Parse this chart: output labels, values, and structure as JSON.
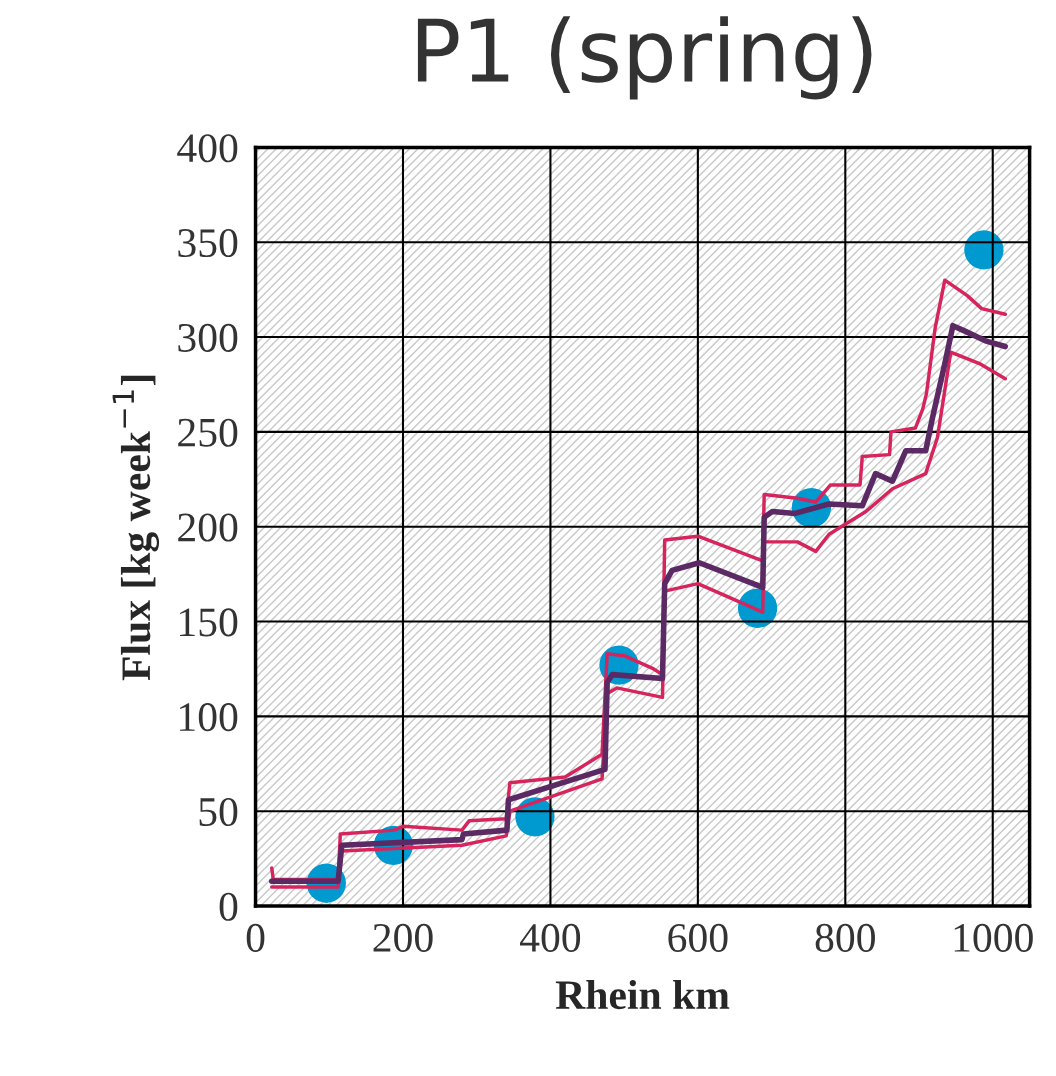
{
  "chart_data": {
    "type": "line",
    "title": "P1 (spring)",
    "xlabel": "Rhein km",
    "ylabel": "Flux [kg week$^{−1}$]",
    "xlim": [
      0,
      1050
    ],
    "xticks": [
      0,
      200,
      400,
      600,
      800,
      1000
    ],
    "ylim": [
      0,
      400
    ],
    "yticks": [
      0,
      50,
      100,
      150,
      200,
      250,
      300,
      350,
      400
    ],
    "grid": true,
    "legend": false,
    "series": [
      {
        "color": "#d6245c",
        "x": [
          22,
          24,
          28,
          112,
          115,
          188,
          200,
          280,
          290,
          340,
          345,
          420,
          470,
          477,
          500,
          540,
          552,
          555,
          600,
          688,
          690,
          735,
          760,
          780,
          820,
          823,
          860,
          862,
          895,
          905,
          910,
          922,
          935,
          965,
          985,
          1017
        ],
        "values": [
          20,
          14,
          14,
          14,
          38,
          40,
          42,
          40,
          45,
          46,
          65,
          68,
          80,
          133,
          132,
          125,
          122,
          193,
          195,
          182,
          217,
          215,
          213,
          222,
          222,
          237,
          238,
          250,
          252,
          262,
          270,
          305,
          330,
          322,
          315,
          312
        ]
      },
      {
        "color": "#d6245c",
        "x": [
          22,
          112,
          117,
          280,
          340,
          345,
          470,
          477,
          490,
          552,
          555,
          600,
          688,
          690,
          735,
          760,
          778,
          828,
          864,
          909,
          925,
          943,
          982,
          1017
        ],
        "values": [
          10,
          10,
          29,
          32,
          37,
          50,
          67,
          112,
          115,
          110,
          166,
          170,
          155,
          192,
          192,
          187,
          196,
          208,
          220,
          228,
          247,
          292,
          286,
          278
        ]
      },
      {
        "color": "#5b2a64",
        "x": [
          22,
          112,
          117,
          280,
          282,
          341,
          343,
          474,
          477,
          484,
          552,
          555,
          565,
          602,
          688,
          690,
          701,
          732,
          778,
          823,
          841,
          864,
          882,
          909,
          918,
          935,
          946,
          963,
          990,
          1017
        ],
        "values": [
          13,
          13,
          32,
          35,
          38,
          40,
          56,
          72,
          118,
          122,
          120,
          170,
          177,
          181,
          168,
          205,
          208,
          207,
          212,
          211,
          228,
          224,
          240,
          240,
          257,
          286,
          306,
          303,
          298,
          295
        ]
      },
      {
        "type": "scatter",
        "color": "#0099d0",
        "marker": "circle",
        "x": [
          96,
          187,
          379,
          493,
          681,
          754,
          988
        ],
        "values": [
          12,
          32,
          47,
          127,
          157,
          210,
          346
        ]
      }
    ]
  }
}
